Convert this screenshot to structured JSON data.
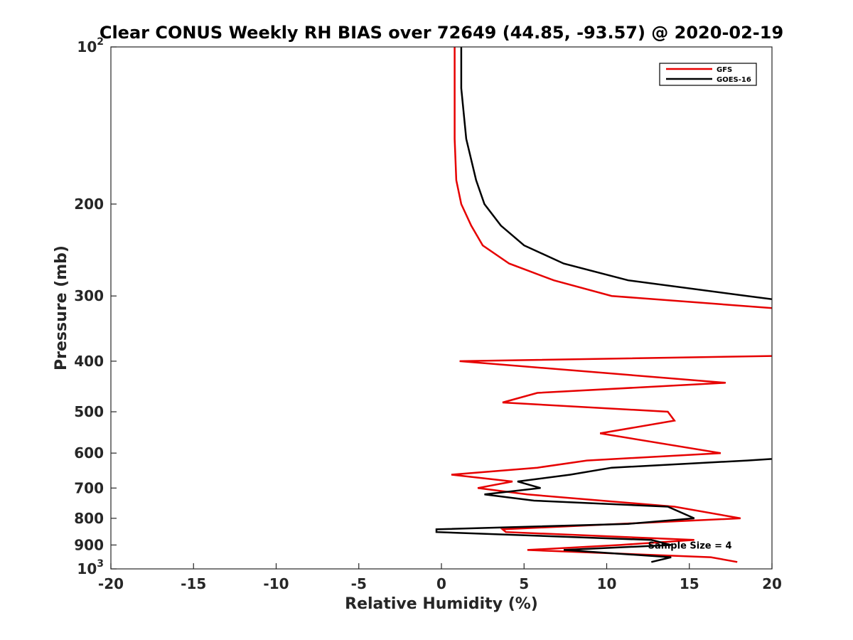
{
  "chart_data": {
    "type": "line",
    "title": "Clear CONUS Weekly RH BIAS over 72649 (44.85, -93.57) @ 2020-02-19",
    "xlabel": "Relative Humidity (%)",
    "ylabel": "Pressure (mb)",
    "xlim": [
      -20,
      20
    ],
    "ylim": [
      100,
      1000
    ],
    "y_scale": "log",
    "y_reversed": true,
    "grid": false,
    "legend_position": "top-right",
    "x_ticks": [
      "-20",
      "-15",
      "-10",
      "-5",
      "0",
      "5",
      "10",
      "15",
      "20"
    ],
    "x_tick_values": [
      -20,
      -15,
      -10,
      -5,
      0,
      5,
      10,
      15,
      20
    ],
    "y_ticks": [
      {
        "value": 100,
        "base": "10",
        "sup": "2"
      },
      {
        "value": 200,
        "base": "200",
        "sup": ""
      },
      {
        "value": 300,
        "base": "300",
        "sup": ""
      },
      {
        "value": 400,
        "base": "400",
        "sup": ""
      },
      {
        "value": 500,
        "base": "500",
        "sup": ""
      },
      {
        "value": 600,
        "base": "600",
        "sup": ""
      },
      {
        "value": 700,
        "base": "700",
        "sup": ""
      },
      {
        "value": 800,
        "base": "800",
        "sup": ""
      },
      {
        "value": 900,
        "base": "900",
        "sup": ""
      },
      {
        "value": 1000,
        "base": "10",
        "sup": "3"
      }
    ],
    "annotation": {
      "text": "Sample Size = 4",
      "x": 12.5,
      "y": 900
    },
    "series": [
      {
        "name": "GFS",
        "color": "#e60000",
        "points": [
          [
            0.8,
            100
          ],
          [
            0.8,
            120
          ],
          [
            0.8,
            150
          ],
          [
            0.9,
            180
          ],
          [
            1.2,
            200
          ],
          [
            1.8,
            220
          ],
          [
            2.5,
            240
          ],
          [
            4.1,
            260
          ],
          [
            6.8,
            280
          ],
          [
            10.3,
            300
          ],
          [
            22,
            320
          ],
          [
            22,
            390
          ],
          [
            1.1,
            400
          ],
          [
            17.2,
            440
          ],
          [
            5.8,
            460
          ],
          [
            3.7,
            480
          ],
          [
            13.7,
            500
          ],
          [
            14.1,
            520
          ],
          [
            9.6,
            550
          ],
          [
            16.9,
            600
          ],
          [
            8.8,
            620
          ],
          [
            5.8,
            640
          ],
          [
            0.6,
            660
          ],
          [
            4.3,
            680
          ],
          [
            2.2,
            700
          ],
          [
            5.2,
            720
          ],
          [
            14.1,
            760
          ],
          [
            18.1,
            800
          ],
          [
            3.7,
            840
          ],
          [
            3.9,
            850
          ],
          [
            15.3,
            880
          ],
          [
            10.8,
            900
          ],
          [
            5.2,
            920
          ],
          [
            16.3,
            950
          ],
          [
            17.9,
            970
          ]
        ]
      },
      {
        "name": "GOES-16",
        "color": "#000000",
        "points": [
          [
            1.2,
            100
          ],
          [
            1.2,
            120
          ],
          [
            1.5,
            150
          ],
          [
            2.1,
            180
          ],
          [
            2.6,
            200
          ],
          [
            3.6,
            220
          ],
          [
            5.0,
            240
          ],
          [
            7.4,
            260
          ],
          [
            11.3,
            280
          ],
          [
            18.5,
            300
          ],
          [
            22,
            310
          ],
          [
            22,
            610
          ],
          [
            18.5,
            620
          ],
          [
            10.3,
            640
          ],
          [
            7.8,
            660
          ],
          [
            4.6,
            680
          ],
          [
            6.0,
            700
          ],
          [
            2.6,
            720
          ],
          [
            5.6,
            740
          ],
          [
            13.7,
            760
          ],
          [
            15.3,
            800
          ],
          [
            11.3,
            820
          ],
          [
            -0.3,
            840
          ],
          [
            -0.3,
            850
          ],
          [
            12.7,
            880
          ],
          [
            13.9,
            900
          ],
          [
            7.4,
            920
          ],
          [
            13.9,
            950
          ],
          [
            12.7,
            970
          ]
        ]
      }
    ]
  }
}
